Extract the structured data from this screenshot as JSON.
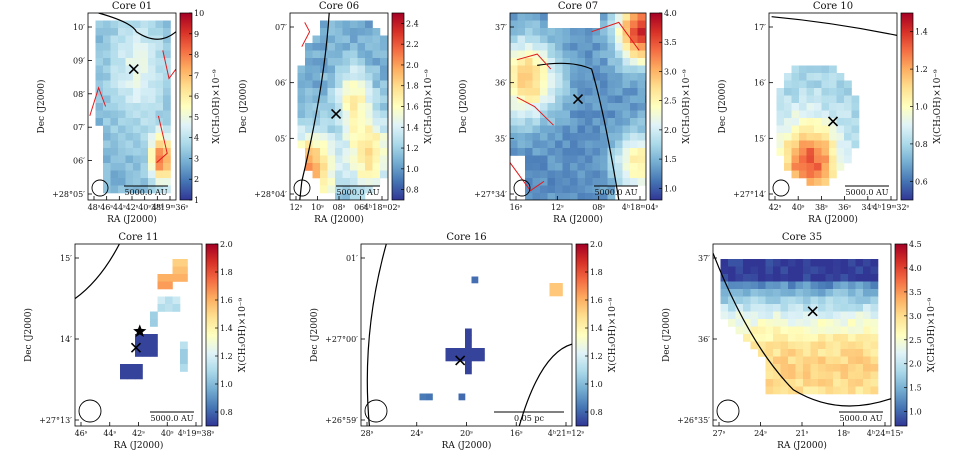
{
  "figure": {
    "colorbar_label": "X(CH₃OH)×10⁻⁹",
    "colormap": [
      "#313695",
      "#4575b4",
      "#74add1",
      "#abd9e9",
      "#e0f3f8",
      "#ffffbf",
      "#fee090",
      "#fdae61",
      "#f46d43",
      "#d73027",
      "#a50026"
    ],
    "contour_color": "#e41a1c",
    "outline_color": "#000000"
  },
  "chart_data": [
    {
      "type": "heatmap",
      "title": "Core 01",
      "xlabel": "RA (J2000)",
      "ylabel": "Dec (J2000)",
      "xticks": [
        "48ˢ",
        "46ˢ",
        "44ˢ",
        "42ˢ",
        "40ˢ",
        "38ˢ",
        "4ʰ19ᵐ36ˢ"
      ],
      "yticks": [
        "10′",
        "09′",
        "08′",
        "07′",
        "06′",
        "+28°05′"
      ],
      "cbar_ticks": [
        "1",
        "2",
        "3",
        "4",
        "5",
        "6",
        "7",
        "8",
        "9",
        "10"
      ],
      "clim": [
        1,
        10
      ],
      "scale_bar": "5000.0 AU",
      "markers": [
        {
          "symbol": "x"
        }
      ],
      "field": {
        "peaks": [
          {
            "u": 0.55,
            "v": 0.3,
            "s": 0.22,
            "a": 0.2
          },
          {
            "u": 0.82,
            "v": 0.78,
            "s": 0.09,
            "a": 0.6
          }
        ],
        "bands": [],
        "base": 0.22,
        "noise": 0.04
      }
    },
    {
      "type": "heatmap",
      "title": "Core 06",
      "xlabel": "RA (J2000)",
      "ylabel": "Dec (J2000)",
      "xticks": [
        "12ˢ",
        "10ˢ",
        "08ˢ",
        "06ˢ",
        "4ʰ18ᵐ02ˢ"
      ],
      "yticks": [
        "07′",
        "06′",
        "05′",
        "+28°04′"
      ],
      "cbar_ticks": [
        "0.8",
        "1.0",
        "1.2",
        "1.4",
        "1.6",
        "1.8",
        "2.0",
        "2.2",
        "2.4"
      ],
      "clim": [
        0.7,
        2.5
      ],
      "scale_bar": "5000.0 AU",
      "markers": [
        {
          "symbol": "x"
        }
      ],
      "field": {
        "peaks": [
          {
            "u": 0.2,
            "v": 0.85,
            "s": 0.15,
            "a": 0.55
          },
          {
            "u": 0.75,
            "v": 0.75,
            "s": 0.15,
            "a": 0.4
          },
          {
            "u": 0.6,
            "v": 0.45,
            "s": 0.12,
            "a": 0.3
          }
        ],
        "bands": [],
        "base": 0.2,
        "noise": 0.05
      }
    },
    {
      "type": "heatmap",
      "title": "Core 07",
      "xlabel": "RA (J2000)",
      "ylabel": "Dec (J2000)",
      "xticks": [
        "16ˢ",
        "12ˢ",
        "08ˢ",
        "4ʰ18ᵐ04ˢ"
      ],
      "yticks": [
        "37′",
        "36′",
        "35′",
        "+27°34′"
      ],
      "cbar_ticks": [
        "1.0",
        "1.5",
        "2.0",
        "2.5",
        "3.0",
        "3.5",
        "4.0"
      ],
      "clim": [
        0.8,
        4.0
      ],
      "scale_bar": "5000.0 AU",
      "markers": [
        {
          "symbol": "x"
        }
      ],
      "field": {
        "peaks": [
          {
            "u": 0.92,
            "v": 0.1,
            "s": 0.12,
            "a": 0.75
          },
          {
            "u": 0.12,
            "v": 0.35,
            "s": 0.15,
            "a": 0.5
          },
          {
            "u": 0.9,
            "v": 0.8,
            "s": 0.12,
            "a": 0.4
          }
        ],
        "bands": [],
        "base": 0.15,
        "noise": 0.04
      }
    },
    {
      "type": "heatmap",
      "title": "Core 10",
      "xlabel": "RA (J2000)",
      "ylabel": "Dec (J2000)",
      "xticks": [
        "42ˢ",
        "40ˢ",
        "38ˢ",
        "36ˢ",
        "34ˢ",
        "4ʰ19ᵐ32ˢ"
      ],
      "yticks": [
        "17′",
        "16′",
        "15′",
        "+27°14′"
      ],
      "cbar_ticks": [
        "0.6",
        "0.8",
        "1.0",
        "1.2",
        "1.4"
      ],
      "clim": [
        0.5,
        1.5
      ],
      "scale_bar": "5000.0 AU",
      "markers": [
        {
          "symbol": "x"
        }
      ],
      "field": {
        "peaks": [
          {
            "u": 0.3,
            "v": 0.8,
            "s": 0.15,
            "a": 0.55
          }
        ],
        "bands": [],
        "base": 0.3,
        "noise": 0.05
      }
    },
    {
      "type": "heatmap",
      "title": "Core 11",
      "xlabel": "RA (J2000)",
      "ylabel": "Dec (J2000)",
      "xticks": [
        "46ˢ",
        "44ˢ",
        "42ˢ",
        "40ˢ",
        "4ʰ19ᵐ38ˢ"
      ],
      "yticks": [
        "15′",
        "14′",
        "+27°13′"
      ],
      "cbar_ticks": [
        "0.8",
        "1.0",
        "1.2",
        "1.4",
        "1.6",
        "1.8",
        "2.0"
      ],
      "clim": [
        0.7,
        2.0
      ],
      "scale_bar": "5000.0 AU",
      "markers": [
        {
          "symbol": "star"
        },
        {
          "symbol": "x"
        }
      ],
      "field": {
        "peaks": [
          {
            "u": 0.9,
            "v": 0.1,
            "s": 0.12,
            "a": 0.45
          }
        ],
        "bands": [],
        "base": 0.3,
        "noise": 0.05
      }
    },
    {
      "type": "heatmap",
      "title": "Core 16",
      "xlabel": "RA (J2000)",
      "ylabel": "Dec (J2000)",
      "xticks": [
        "28ˢ",
        "24ˢ",
        "20ˢ",
        "16ˢ",
        "4ʰ21ᵐ12ˢ"
      ],
      "yticks": [
        "01′",
        "+27°00′",
        "+26°59′"
      ],
      "cbar_ticks": [
        "0.8",
        "1.0",
        "1.2",
        "1.4",
        "1.6",
        "1.8",
        "2.0"
      ],
      "clim": [
        0.7,
        2.0
      ],
      "scale_bar": "0.05 pc",
      "markers": [
        {
          "symbol": "x"
        }
      ],
      "field": {
        "peaks": [],
        "bands": [],
        "base": 0.1,
        "noise": 0.02
      }
    },
    {
      "type": "heatmap",
      "title": "Core 35",
      "xlabel": "RA (J2000)",
      "ylabel": "Dec (J2000)",
      "xticks": [
        "27ˢ",
        "24ˢ",
        "21ˢ",
        "18ˢ",
        "4ʰ24ᵐ15ˢ"
      ],
      "yticks": [
        "37′",
        "36′",
        "+26°35′"
      ],
      "cbar_ticks": [
        "1.0",
        "1.5",
        "2.0",
        "2.5",
        "3.0",
        "3.5",
        "4.0",
        "4.5"
      ],
      "clim": [
        0.7,
        4.5
      ],
      "scale_bar": "5000.0 AU",
      "markers": [
        {
          "symbol": "x"
        }
      ],
      "field": {
        "peaks": [],
        "bands": [
          {
            "axis": "v",
            "from": 0.2,
            "to": 1.0,
            "a0": 0.12,
            "a1": 0.62
          }
        ],
        "base": 0.0,
        "noise": 0.05
      }
    }
  ]
}
